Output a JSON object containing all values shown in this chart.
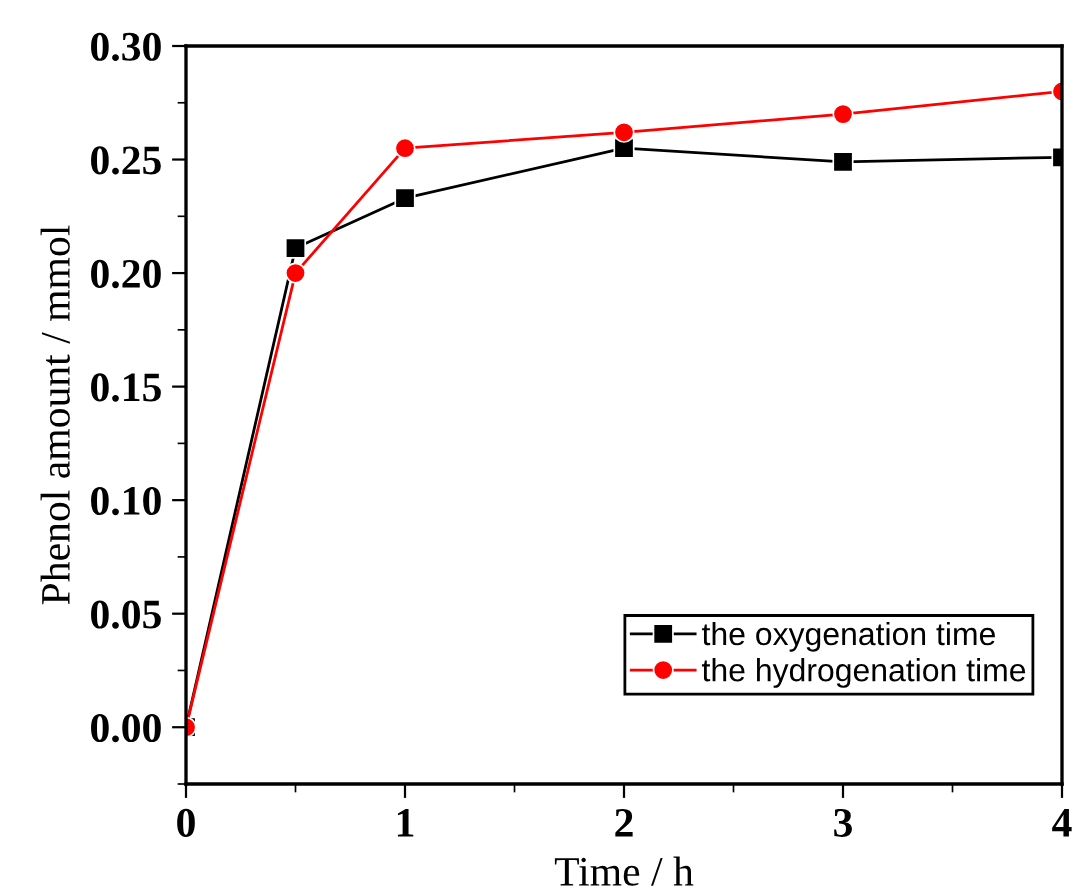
{
  "chart_data": {
    "type": "line",
    "xlabel": "Time / h",
    "ylabel": "Phenol amount / mmol",
    "x": [
      0,
      0.5,
      1,
      2,
      3,
      4
    ],
    "series": [
      {
        "name": "the oxygenation time",
        "color": "#000000",
        "marker": "square",
        "values": [
          0,
          0.211,
          0.233,
          0.255,
          0.249,
          0.251
        ]
      },
      {
        "name": "the hydrogenation time",
        "color": "#ff0000",
        "marker": "circle",
        "values": [
          0,
          0.2,
          0.255,
          0.262,
          0.27,
          0.28
        ]
      }
    ],
    "xlim": [
      0,
      4
    ],
    "xticks": [
      0,
      1,
      2,
      3,
      4
    ],
    "ylim": [
      -0.025,
      0.3
    ],
    "yticks": [
      {
        "value": 0,
        "label": "0.00"
      },
      {
        "value": 0.05,
        "label": "0.05"
      },
      {
        "value": 0.1,
        "label": "0.10"
      },
      {
        "value": 0.15,
        "label": "0.15"
      },
      {
        "value": 0.2,
        "label": "0.20"
      },
      {
        "value": 0.25,
        "label": "0.25"
      },
      {
        "value": 0.3,
        "label": "0.30"
      }
    ],
    "grid": false,
    "legend": "bottom right",
    "line_style": "solid"
  }
}
